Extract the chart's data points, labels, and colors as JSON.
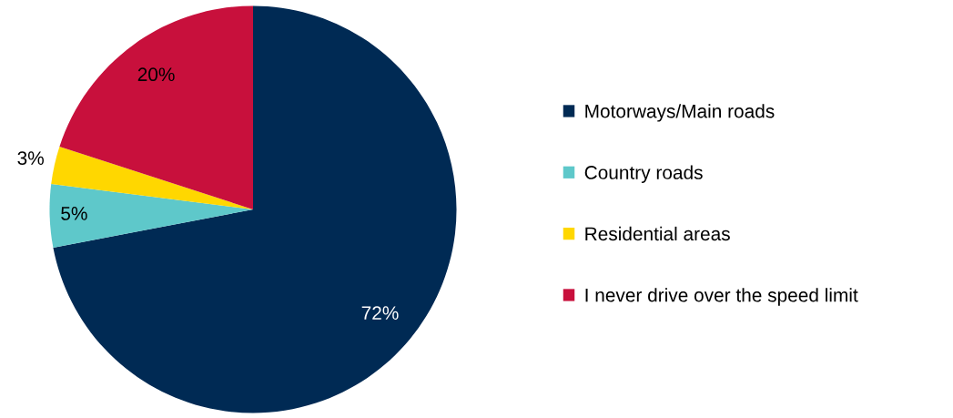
{
  "chart_data": {
    "type": "pie",
    "categories": [
      "Motorways/Main roads",
      "Country roads",
      "Residential areas",
      "I never drive over the speed limit"
    ],
    "values": [
      72,
      5,
      3,
      20
    ],
    "colors": [
      "#002a54",
      "#5ec8ca",
      "#ffd700",
      "#c8103c"
    ],
    "value_labels": [
      "72%",
      "5%",
      "3%",
      "20%"
    ],
    "legend": "right"
  }
}
